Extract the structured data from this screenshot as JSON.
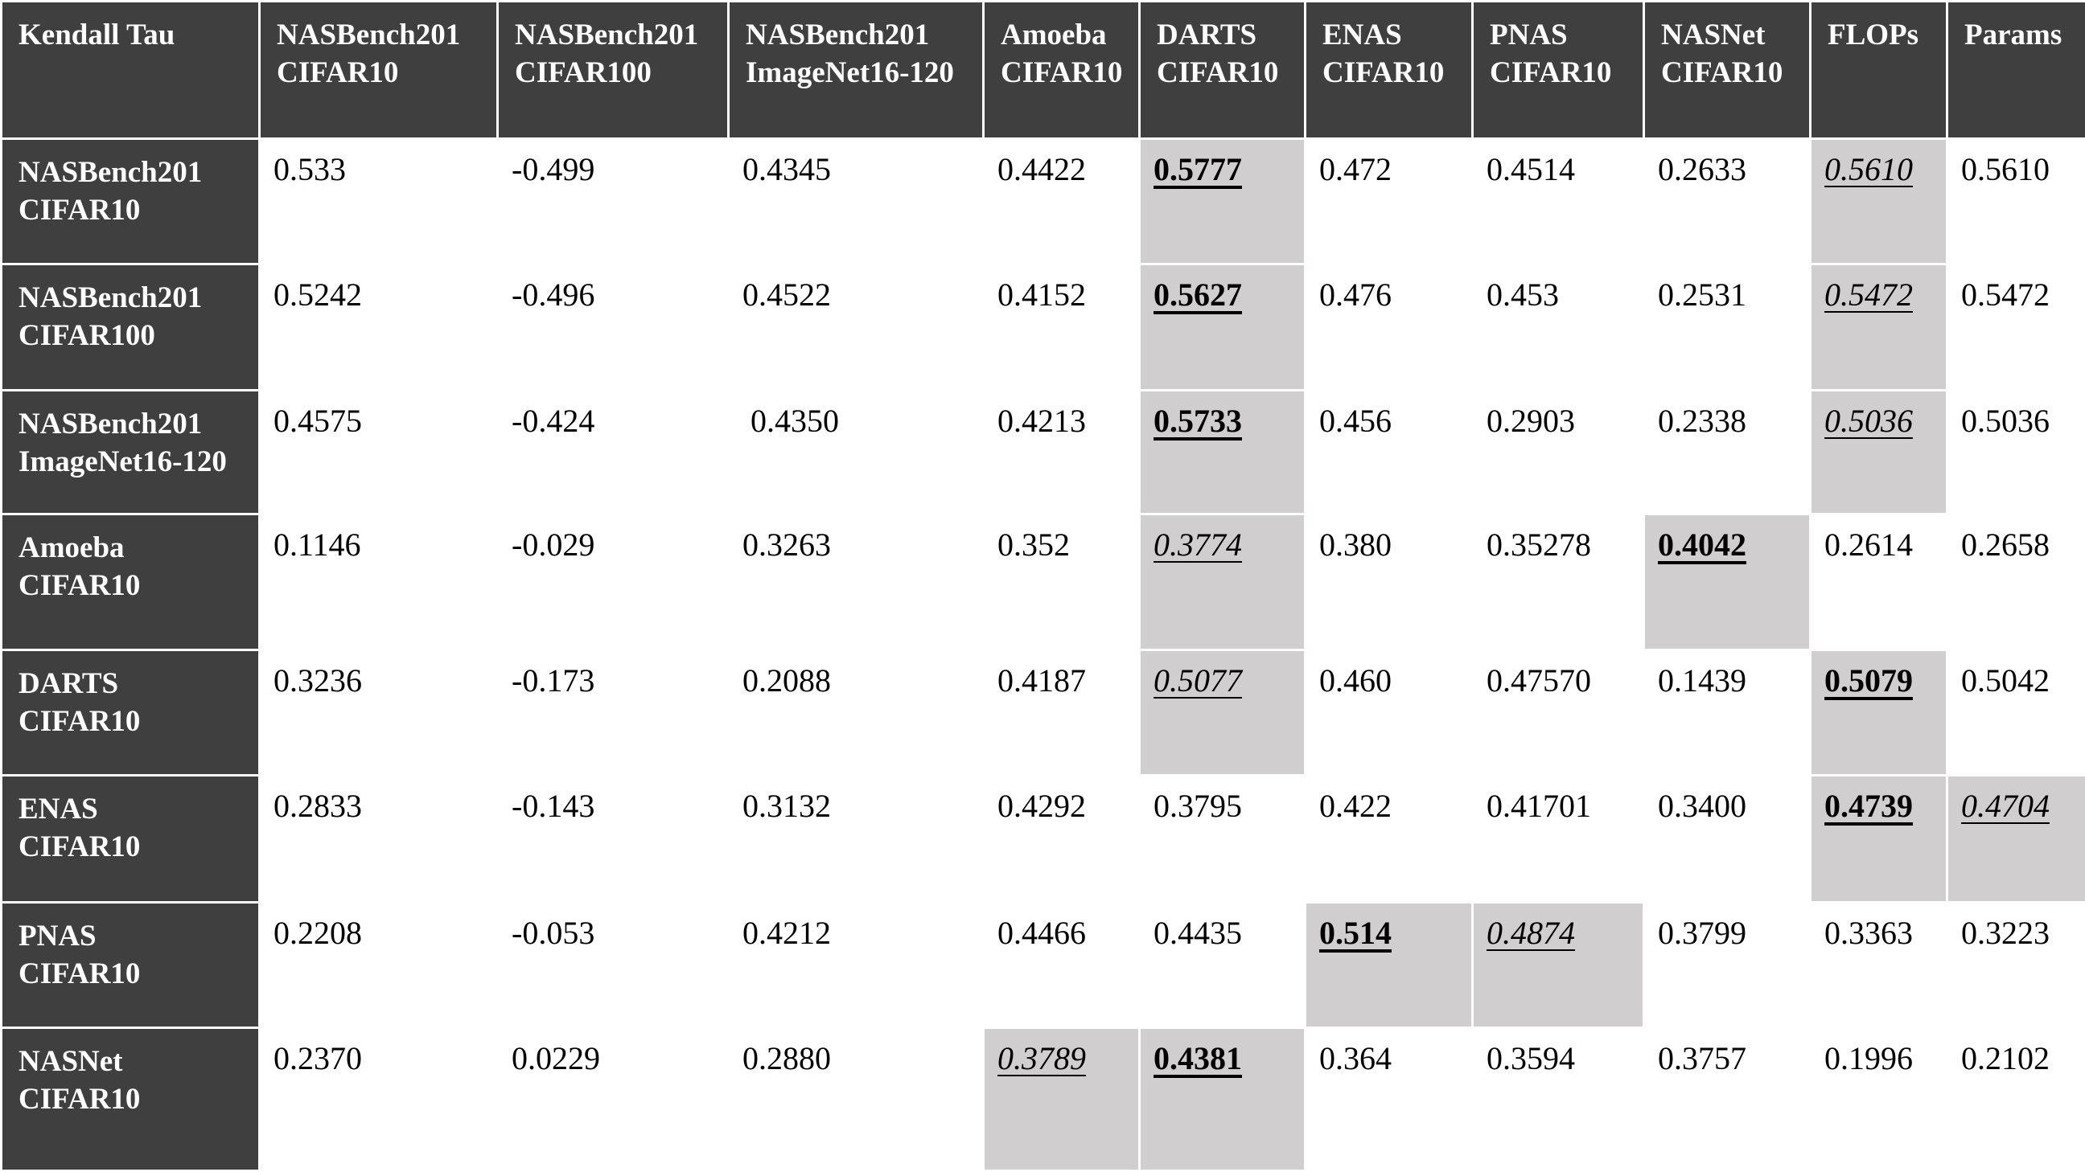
{
  "colors": {
    "header_bg": "#3f3f3f",
    "header_text": "#ffffff",
    "highlight_bg": "#d0cecf",
    "body_bg": "#ffffff",
    "body_text": "#000000"
  },
  "table": {
    "corner_label": "Kendall Tau",
    "col_headers": [
      "NASBench201\nCIFAR10",
      "NASBench201\nCIFAR100",
      "NASBench201\nImageNet16-120",
      "Amoeba\nCIFAR10",
      "DARTS\nCIFAR10",
      "ENAS\nCIFAR10",
      "PNAS\nCIFAR10",
      "NASNet\nCIFAR10",
      "FLOPs",
      "Params"
    ],
    "rows": [
      {
        "header": "NASBench201\nCIFAR10",
        "cells": [
          {
            "value": "0.533",
            "emphasis": "none",
            "highlighted": false
          },
          {
            "value": "-0.499",
            "emphasis": "none",
            "highlighted": false
          },
          {
            "value": "0.4345",
            "emphasis": "none",
            "highlighted": false
          },
          {
            "value": "0.4422",
            "emphasis": "none",
            "highlighted": false
          },
          {
            "value": "0.5777",
            "emphasis": "bold-underline",
            "highlighted": true
          },
          {
            "value": "0.472",
            "emphasis": "none",
            "highlighted": false
          },
          {
            "value": "0.4514",
            "emphasis": "none",
            "highlighted": false
          },
          {
            "value": "0.2633",
            "emphasis": "none",
            "highlighted": false
          },
          {
            "value": "0.5610",
            "emphasis": "italic-underline",
            "highlighted": true
          },
          {
            "value": "0.5610",
            "emphasis": "none",
            "highlighted": false
          }
        ]
      },
      {
        "header": "NASBench201\nCIFAR100",
        "cells": [
          {
            "value": "0.5242",
            "emphasis": "none",
            "highlighted": false
          },
          {
            "value": "-0.496",
            "emphasis": "none",
            "highlighted": false
          },
          {
            "value": "0.4522",
            "emphasis": "none",
            "highlighted": false
          },
          {
            "value": "0.4152",
            "emphasis": "none",
            "highlighted": false
          },
          {
            "value": "0.5627",
            "emphasis": "bold-underline",
            "highlighted": true
          },
          {
            "value": "0.476",
            "emphasis": "none",
            "highlighted": false
          },
          {
            "value": "0.453",
            "emphasis": "none",
            "highlighted": false
          },
          {
            "value": "0.2531",
            "emphasis": "none",
            "highlighted": false
          },
          {
            "value": "0.5472",
            "emphasis": "italic-underline",
            "highlighted": true
          },
          {
            "value": "0.5472",
            "emphasis": "none",
            "highlighted": false
          }
        ]
      },
      {
        "header": "NASBench201\nImageNet16-120",
        "cells": [
          {
            "value": "0.4575",
            "emphasis": "none",
            "highlighted": false
          },
          {
            "value": "-0.424",
            "emphasis": "none",
            "highlighted": false
          },
          {
            "value": " 0.4350",
            "emphasis": "none",
            "highlighted": false
          },
          {
            "value": "0.4213",
            "emphasis": "none",
            "highlighted": false
          },
          {
            "value": "0.5733",
            "emphasis": "bold-underline",
            "highlighted": true
          },
          {
            "value": "0.456",
            "emphasis": "none",
            "highlighted": false
          },
          {
            "value": "0.2903",
            "emphasis": "none",
            "highlighted": false
          },
          {
            "value": "0.2338",
            "emphasis": "none",
            "highlighted": false
          },
          {
            "value": "0.5036",
            "emphasis": "italic-underline",
            "highlighted": true
          },
          {
            "value": "0.5036",
            "emphasis": "none",
            "highlighted": false
          }
        ]
      },
      {
        "header": "Amoeba\nCIFAR10",
        "cells": [
          {
            "value": "0.1146",
            "emphasis": "none",
            "highlighted": false
          },
          {
            "value": "-0.029",
            "emphasis": "none",
            "highlighted": false
          },
          {
            "value": "0.3263",
            "emphasis": "none",
            "highlighted": false
          },
          {
            "value": "0.352",
            "emphasis": "none",
            "highlighted": false
          },
          {
            "value": "0.3774",
            "emphasis": "italic-underline",
            "highlighted": true
          },
          {
            "value": "0.380",
            "emphasis": "none",
            "highlighted": false
          },
          {
            "value": "0.35278",
            "emphasis": "none",
            "highlighted": false
          },
          {
            "value": "0.4042",
            "emphasis": "bold-underline",
            "highlighted": true
          },
          {
            "value": "0.2614",
            "emphasis": "none",
            "highlighted": false
          },
          {
            "value": "0.2658",
            "emphasis": "none",
            "highlighted": false
          }
        ]
      },
      {
        "header": "DARTS\nCIFAR10",
        "cells": [
          {
            "value": "0.3236",
            "emphasis": "none",
            "highlighted": false
          },
          {
            "value": "-0.173",
            "emphasis": "none",
            "highlighted": false
          },
          {
            "value": "0.2088",
            "emphasis": "none",
            "highlighted": false
          },
          {
            "value": "0.4187",
            "emphasis": "none",
            "highlighted": false
          },
          {
            "value": "0.5077",
            "emphasis": "italic-underline",
            "highlighted": true
          },
          {
            "value": "0.460",
            "emphasis": "none",
            "highlighted": false
          },
          {
            "value": "0.47570",
            "emphasis": "none",
            "highlighted": false
          },
          {
            "value": "0.1439",
            "emphasis": "none",
            "highlighted": false
          },
          {
            "value": "0.5079",
            "emphasis": "bold-underline",
            "highlighted": true
          },
          {
            "value": "0.5042",
            "emphasis": "none",
            "highlighted": false
          }
        ]
      },
      {
        "header": "ENAS\nCIFAR10",
        "cells": [
          {
            "value": "0.2833",
            "emphasis": "none",
            "highlighted": false
          },
          {
            "value": "-0.143",
            "emphasis": "none",
            "highlighted": false
          },
          {
            "value": "0.3132",
            "emphasis": "none",
            "highlighted": false
          },
          {
            "value": "0.4292",
            "emphasis": "none",
            "highlighted": false
          },
          {
            "value": "0.3795",
            "emphasis": "none",
            "highlighted": false
          },
          {
            "value": "0.422",
            "emphasis": "none",
            "highlighted": false
          },
          {
            "value": "0.41701",
            "emphasis": "none",
            "highlighted": false
          },
          {
            "value": "0.3400",
            "emphasis": "none",
            "highlighted": false
          },
          {
            "value": "0.4739",
            "emphasis": "bold-underline",
            "highlighted": true
          },
          {
            "value": "0.4704",
            "emphasis": "italic-underline",
            "highlighted": true
          }
        ]
      },
      {
        "header": "PNAS\nCIFAR10",
        "cells": [
          {
            "value": "0.2208",
            "emphasis": "none",
            "highlighted": false
          },
          {
            "value": "-0.053",
            "emphasis": "none",
            "highlighted": false
          },
          {
            "value": "0.4212",
            "emphasis": "none",
            "highlighted": false
          },
          {
            "value": "0.4466",
            "emphasis": "none",
            "highlighted": false
          },
          {
            "value": "0.4435",
            "emphasis": "none",
            "highlighted": false
          },
          {
            "value": "0.514",
            "emphasis": "bold-underline",
            "highlighted": true
          },
          {
            "value": "0.4874",
            "emphasis": "italic-underline",
            "highlighted": true
          },
          {
            "value": "0.3799",
            "emphasis": "none",
            "highlighted": false
          },
          {
            "value": "0.3363",
            "emphasis": "none",
            "highlighted": false
          },
          {
            "value": "0.3223",
            "emphasis": "none",
            "highlighted": false
          }
        ]
      },
      {
        "header": "NASNet\nCIFAR10",
        "cells": [
          {
            "value": "0.2370",
            "emphasis": "none",
            "highlighted": false
          },
          {
            "value": "0.0229",
            "emphasis": "none",
            "highlighted": false
          },
          {
            "value": "0.2880",
            "emphasis": "none",
            "highlighted": false
          },
          {
            "value": "0.3789",
            "emphasis": "italic-underline",
            "highlighted": true
          },
          {
            "value": "0.4381",
            "emphasis": "bold-underline",
            "highlighted": true
          },
          {
            "value": "0.364",
            "emphasis": "none",
            "highlighted": false
          },
          {
            "value": "0.3594",
            "emphasis": "none",
            "highlighted": false
          },
          {
            "value": "0.3757",
            "emphasis": "none",
            "highlighted": false
          },
          {
            "value": "0.1996",
            "emphasis": "none",
            "highlighted": false
          },
          {
            "value": "0.2102",
            "emphasis": "none",
            "highlighted": false
          }
        ]
      }
    ]
  }
}
